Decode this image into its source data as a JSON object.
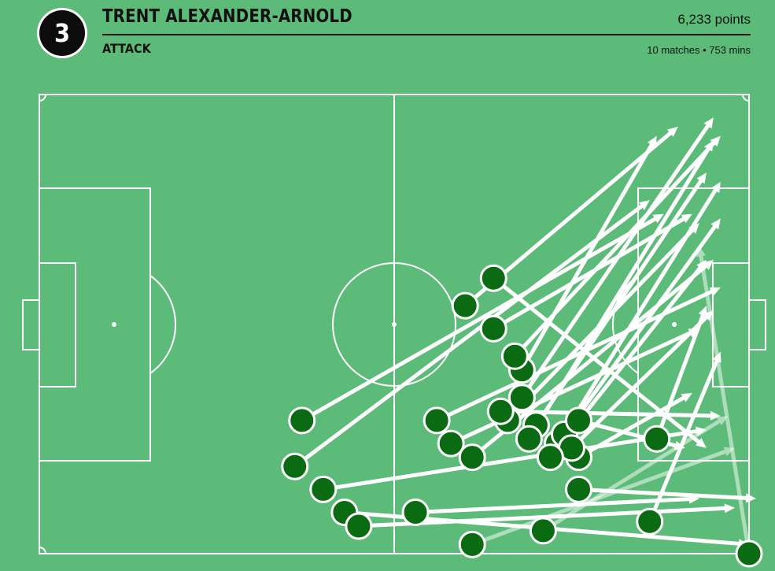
{
  "header": {
    "rank": "3",
    "player_name": "TRENT ALEXANDER-ARNOLD",
    "points": "6,233 points",
    "category": "ATTACK",
    "stats": "10 matches • 753 mins"
  },
  "colors": {
    "background": "#5cbb78",
    "pitch_lines": "#ffffff",
    "start_marker": "#0b6b12",
    "arrow": "#ffffff"
  },
  "passes": [
    {
      "from": [
        0.4,
        0.86
      ],
      "to": [
        0.94,
        0.73
      ],
      "faded": false
    },
    {
      "from": [
        0.68,
        0.6
      ],
      "to": [
        0.87,
        0.09
      ],
      "faded": false
    },
    {
      "from": [
        0.64,
        0.4
      ],
      "to": [
        0.94,
        0.77
      ],
      "faded": false
    },
    {
      "from": [
        0.6,
        0.46
      ],
      "to": [
        0.9,
        0.07
      ],
      "faded": false
    },
    {
      "from": [
        0.68,
        0.66
      ],
      "to": [
        0.95,
        0.05
      ],
      "faded": false
    },
    {
      "from": [
        0.7,
        0.72
      ],
      "to": [
        0.94,
        0.17
      ],
      "faded": false
    },
    {
      "from": [
        0.66,
        0.71
      ],
      "to": [
        0.93,
        0.28
      ],
      "faded": false
    },
    {
      "from": [
        0.73,
        0.76
      ],
      "to": [
        0.96,
        0.19
      ],
      "faded": false
    },
    {
      "from": [
        0.65,
        0.69
      ],
      "to": [
        0.96,
        0.7
      ],
      "faded": false
    },
    {
      "from": [
        0.76,
        0.79
      ],
      "to": [
        0.92,
        0.65
      ],
      "faded": false
    },
    {
      "from": [
        0.74,
        0.74
      ],
      "to": [
        0.96,
        0.27
      ],
      "faded": false
    },
    {
      "from": [
        0.87,
        0.75
      ],
      "to": [
        0.94,
        0.46
      ],
      "faded": false
    },
    {
      "from": [
        0.58,
        0.76
      ],
      "to": [
        0.93,
        0.51
      ],
      "faded": false
    },
    {
      "from": [
        0.86,
        0.93
      ],
      "to": [
        0.96,
        0.56
      ],
      "faded": false
    },
    {
      "from": [
        0.76,
        0.71
      ],
      "to": [
        0.91,
        0.77
      ],
      "faded": false
    },
    {
      "from": [
        0.64,
        0.51
      ],
      "to": [
        0.92,
        0.26
      ],
      "faded": false
    },
    {
      "from": [
        0.56,
        0.71
      ],
      "to": [
        0.96,
        0.42
      ],
      "faded": false
    },
    {
      "from": [
        0.69,
        0.75
      ],
      "to": [
        0.95,
        0.1
      ],
      "faded": false
    },
    {
      "from": [
        0.37,
        0.71
      ],
      "to": [
        0.88,
        0.26
      ],
      "faded": false
    },
    {
      "from": [
        0.36,
        0.81
      ],
      "to": [
        0.86,
        0.23
      ],
      "faded": false
    },
    {
      "from": [
        0.53,
        0.91
      ],
      "to": [
        0.93,
        0.88
      ],
      "faded": false
    },
    {
      "from": [
        0.76,
        0.86
      ],
      "to": [
        1.01,
        0.88
      ],
      "faded": false
    },
    {
      "from": [
        0.43,
        0.91
      ],
      "to": [
        1.0,
        0.98
      ],
      "faded": false
    },
    {
      "from": [
        0.45,
        0.94
      ],
      "to": [
        0.98,
        0.9
      ],
      "faded": false
    },
    {
      "from": [
        0.61,
        0.98
      ],
      "to": [
        0.98,
        0.77
      ],
      "faded": true
    },
    {
      "from": [
        0.71,
        0.95
      ],
      "to": [
        0.97,
        0.7
      ],
      "faded": true
    },
    {
      "from": [
        1.0,
        1.0
      ],
      "to": [
        0.93,
        0.33
      ],
      "faded": true
    },
    {
      "from": [
        0.67,
        0.57
      ],
      "to": [
        0.96,
        0.09
      ],
      "faded": false
    },
    {
      "from": [
        0.75,
        0.77
      ],
      "to": [
        0.95,
        0.47
      ],
      "faded": false
    },
    {
      "from": [
        0.72,
        0.79
      ],
      "to": [
        0.94,
        0.36
      ],
      "faded": false
    },
    {
      "from": [
        0.61,
        0.79
      ],
      "to": [
        0.95,
        0.36
      ],
      "faded": false
    }
  ]
}
